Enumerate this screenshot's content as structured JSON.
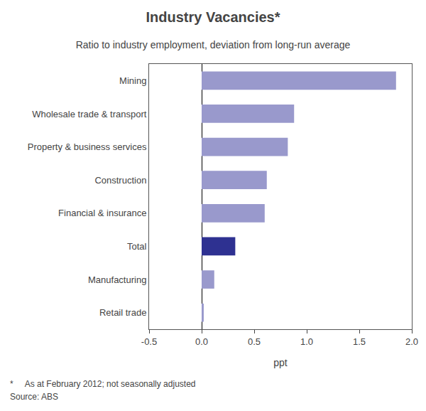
{
  "chart_data": {
    "type": "bar",
    "orientation": "horizontal",
    "title": "Industry Vacancies*",
    "subtitle": "Ratio to industry employment, deviation from long-run average",
    "categories": [
      "Mining",
      "Wholesale trade & transport",
      "Property & business services",
      "Construction",
      "Financial & insurance",
      "Total",
      "Manufacturing",
      "Retail trade"
    ],
    "values": [
      1.85,
      0.88,
      0.82,
      0.62,
      0.6,
      0.32,
      0.12,
      0.02
    ],
    "colors": [
      "#9999cc",
      "#9999cc",
      "#9999cc",
      "#9999cc",
      "#9999cc",
      "#2e3191",
      "#9999cc",
      "#9999cc"
    ],
    "xlim": [
      -0.5,
      2.0
    ],
    "xticks": [
      -0.5,
      {
        "value": 0.0,
        "label": "0.0"
      },
      0.5,
      {
        "value": 1.0,
        "label": "1.0"
      },
      1.5,
      {
        "value": 2.0,
        "label": "2.0"
      }
    ],
    "xlabel": "ppt",
    "annotations": [
      "*     As at February 2012; not seasonally adjusted",
      "Source: ABS"
    ],
    "grid": false
  }
}
